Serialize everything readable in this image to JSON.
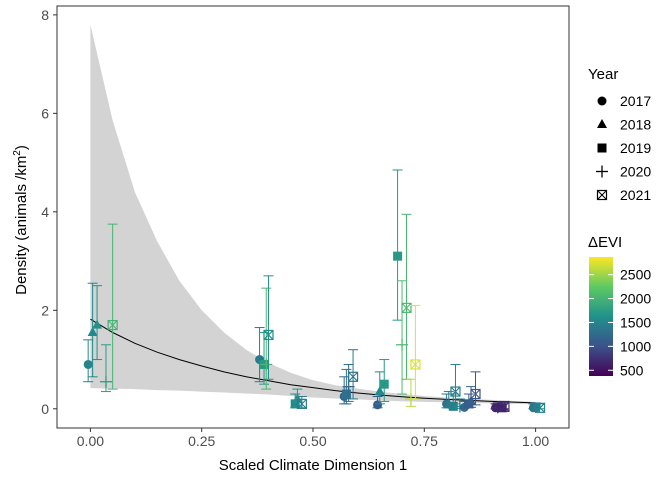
{
  "chart_data": {
    "type": "scatter",
    "xlabel": "Scaled Climate Dimension 1",
    "ylabel_main": "Density (animals /km",
    "ylabel_sup": "2",
    "ylabel_end": ")",
    "xlim": [
      -0.075,
      1.075
    ],
    "ylim": [
      -0.39,
      8.18
    ],
    "xticks": [
      0,
      0.25,
      0.5,
      0.75,
      1
    ],
    "xtick_labels": [
      "0.00",
      "0.25",
      "0.50",
      "0.75",
      "1.00"
    ],
    "yticks": [
      0,
      2,
      4,
      6,
      8
    ],
    "ytick_labels": [
      "0",
      "2",
      "4",
      "6",
      "8"
    ],
    "grid": false,
    "legend_year": {
      "title": "Year",
      "entries": [
        {
          "label": "2017",
          "shape": "circle"
        },
        {
          "label": "2018",
          "shape": "triangle"
        },
        {
          "label": "2019",
          "shape": "square"
        },
        {
          "label": "2020",
          "shape": "plus"
        },
        {
          "label": "2021",
          "shape": "boxcross"
        }
      ]
    },
    "legend_color": {
      "title": "ΔEVI",
      "ticks": [
        500,
        1000,
        1500,
        2000,
        2500
      ],
      "tick_labels": [
        "500",
        "1000",
        "1500",
        "2000",
        "2500"
      ],
      "range": [
        380,
        2870
      ]
    },
    "fit": {
      "x": [
        0,
        0.05,
        0.1,
        0.15,
        0.2,
        0.25,
        0.3,
        0.35,
        0.4,
        0.45,
        0.5,
        0.55,
        0.6,
        0.65,
        0.7,
        0.75,
        0.8,
        0.85,
        0.9,
        0.95,
        1.0
      ],
      "y": [
        1.82,
        1.55,
        1.33,
        1.15,
        1.0,
        0.87,
        0.75,
        0.65,
        0.57,
        0.49,
        0.43,
        0.37,
        0.32,
        0.28,
        0.245,
        0.215,
        0.19,
        0.17,
        0.15,
        0.135,
        0.12
      ],
      "lower": [
        0.42,
        0.41,
        0.4,
        0.38,
        0.37,
        0.35,
        0.33,
        0.31,
        0.29,
        0.26,
        0.23,
        0.21,
        0.19,
        0.17,
        0.155,
        0.14,
        0.13,
        0.12,
        0.11,
        0.1,
        0.09
      ],
      "upper": [
        7.8,
        5.85,
        4.4,
        3.4,
        2.6,
        2.0,
        1.55,
        1.2,
        0.93,
        0.73,
        0.58,
        0.48,
        0.41,
        0.35,
        0.3,
        0.26,
        0.23,
        0.2,
        0.18,
        0.16,
        0.14
      ]
    },
    "points": [
      {
        "x": -0.005,
        "y": 0.9,
        "lo": 0.55,
        "hi": 1.4,
        "shape": "circle",
        "evi": 1500
      },
      {
        "x": 0.005,
        "y": 1.55,
        "lo": 0.65,
        "hi": 2.55,
        "shape": "triangle",
        "evi": 1550
      },
      {
        "x": 0.015,
        "y": 1.7,
        "lo": 1.0,
        "hi": 2.5,
        "shape": "triangle",
        "evi": 1650
      },
      {
        "x": 0.035,
        "y": 0.55,
        "lo": 0.35,
        "hi": 1.3,
        "shape": "plus",
        "evi": 1750
      },
      {
        "x": 0.05,
        "y": 1.7,
        "lo": 0.4,
        "hi": 3.75,
        "shape": "boxcross",
        "evi": 2000
      },
      {
        "x": 0.38,
        "y": 1.0,
        "lo": 0.55,
        "hi": 1.65,
        "shape": "circle",
        "evi": 1400
      },
      {
        "x": 0.39,
        "y": 0.9,
        "lo": 0.5,
        "hi": 1.55,
        "shape": "square",
        "evi": 1700
      },
      {
        "x": 0.395,
        "y": 0.9,
        "lo": 0.4,
        "hi": 2.45,
        "shape": "plus",
        "evi": 2050
      },
      {
        "x": 0.4,
        "y": 1.5,
        "lo": 0.6,
        "hi": 2.7,
        "shape": "boxcross",
        "evi": 1600
      },
      {
        "x": 0.46,
        "y": 0.1,
        "lo": 0.02,
        "hi": 0.3,
        "shape": "square",
        "evi": 1550
      },
      {
        "x": 0.465,
        "y": 0.2,
        "lo": 0.05,
        "hi": 0.4,
        "shape": "triangle",
        "evi": 1650
      },
      {
        "x": 0.475,
        "y": 0.1,
        "lo": 0.02,
        "hi": 0.25,
        "shape": "boxcross",
        "evi": 1400
      },
      {
        "x": 0.57,
        "y": 0.25,
        "lo": 0.1,
        "hi": 0.65,
        "shape": "circle",
        "evi": 1200
      },
      {
        "x": 0.575,
        "y": 0.3,
        "lo": 0.1,
        "hi": 0.8,
        "shape": "square",
        "evi": 1300
      },
      {
        "x": 0.58,
        "y": 0.45,
        "lo": 0.15,
        "hi": 0.9,
        "shape": "plus",
        "evi": 1250
      },
      {
        "x": 0.59,
        "y": 0.65,
        "lo": 0.2,
        "hi": 1.2,
        "shape": "boxcross",
        "evi": 1350
      },
      {
        "x": 0.645,
        "y": 0.08,
        "lo": 0.02,
        "hi": 0.25,
        "shape": "circle",
        "evi": 1100
      },
      {
        "x": 0.65,
        "y": 0.35,
        "lo": 0.1,
        "hi": 0.75,
        "shape": "triangle",
        "evi": 1550
      },
      {
        "x": 0.66,
        "y": 0.5,
        "lo": 0.15,
        "hi": 1.0,
        "shape": "square",
        "evi": 1700
      },
      {
        "x": 0.69,
        "y": 3.1,
        "lo": 1.8,
        "hi": 4.85,
        "shape": "square",
        "evi": 1700
      },
      {
        "x": 0.7,
        "y": 1.3,
        "lo": 0.3,
        "hi": 2.6,
        "shape": "plus",
        "evi": 2100
      },
      {
        "x": 0.71,
        "y": 2.05,
        "lo": 0.6,
        "hi": 3.95,
        "shape": "boxcross",
        "evi": 2050
      },
      {
        "x": 0.72,
        "y": 0.2,
        "lo": 0.05,
        "hi": 0.6,
        "shape": "plus",
        "evi": 2600
      },
      {
        "x": 0.73,
        "y": 0.9,
        "lo": 0.2,
        "hi": 2.1,
        "shape": "boxcross",
        "evi": 2750
      },
      {
        "x": 0.8,
        "y": 0.1,
        "lo": 0.02,
        "hi": 0.3,
        "shape": "circle",
        "evi": 1300
      },
      {
        "x": 0.805,
        "y": 0.1,
        "lo": 0.02,
        "hi": 0.35,
        "shape": "triangle",
        "evi": 1400
      },
      {
        "x": 0.815,
        "y": 0.05,
        "lo": 0.01,
        "hi": 0.3,
        "shape": "square",
        "evi": 1450
      },
      {
        "x": 0.82,
        "y": 0.35,
        "lo": 0.1,
        "hi": 0.9,
        "shape": "boxcross",
        "evi": 1450
      },
      {
        "x": 0.83,
        "y": 0.05,
        "lo": 0.01,
        "hi": 0.2,
        "shape": "plus",
        "evi": 1550
      },
      {
        "x": 0.84,
        "y": 0.03,
        "lo": 0.01,
        "hi": 0.15,
        "shape": "circle",
        "evi": 1200
      },
      {
        "x": 0.85,
        "y": 0.1,
        "lo": 0.02,
        "hi": 0.3,
        "shape": "square",
        "evi": 1100
      },
      {
        "x": 0.855,
        "y": 0.15,
        "lo": 0.03,
        "hi": 0.45,
        "shape": "triangle",
        "evi": 1150
      },
      {
        "x": 0.865,
        "y": 0.3,
        "lo": 0.08,
        "hi": 0.75,
        "shape": "boxcross",
        "evi": 1050
      },
      {
        "x": 0.91,
        "y": 0.02,
        "lo": 0.0,
        "hi": 0.1,
        "shape": "circle",
        "evi": 650
      },
      {
        "x": 0.915,
        "y": 0.03,
        "lo": 0.0,
        "hi": 0.12,
        "shape": "plus",
        "evi": 700
      },
      {
        "x": 0.925,
        "y": 0.02,
        "lo": 0.0,
        "hi": 0.1,
        "shape": "square",
        "evi": 600
      },
      {
        "x": 0.93,
        "y": 0.04,
        "lo": 0.0,
        "hi": 0.15,
        "shape": "boxcross",
        "evi": 700
      },
      {
        "x": 0.995,
        "y": 0.02,
        "lo": 0.0,
        "hi": 0.1,
        "shape": "circle",
        "evi": 1300
      },
      {
        "x": 1.0,
        "y": 0.03,
        "lo": 0.0,
        "hi": 0.12,
        "shape": "square",
        "evi": 1400
      },
      {
        "x": 1.01,
        "y": 0.02,
        "lo": 0.0,
        "hi": 0.1,
        "shape": "boxcross",
        "evi": 1500
      }
    ]
  }
}
